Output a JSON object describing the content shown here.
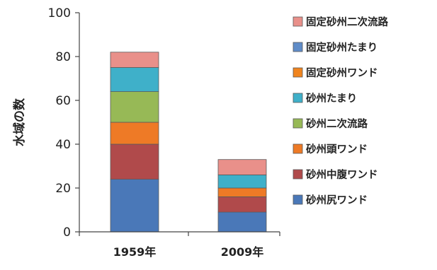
{
  "chart_data": {
    "type": "bar",
    "stacked": true,
    "categories": [
      "1959年",
      "2009年"
    ],
    "ylabel": "水域の数",
    "xlabel": "",
    "ylim": [
      0,
      100
    ],
    "yticks": [
      0,
      20,
      40,
      60,
      80,
      100
    ],
    "grid": false,
    "legend_position": "right",
    "series": [
      {
        "name": "砂州尻ワンド",
        "color": "#4a78b8",
        "values": [
          24,
          9
        ]
      },
      {
        "name": "砂州中腹ワンド",
        "color": "#b04a4b",
        "values": [
          16,
          7
        ]
      },
      {
        "name": "砂州頭ワンド",
        "color": "#ee7a26",
        "values": [
          10,
          4
        ]
      },
      {
        "name": "砂州二次流路",
        "color": "#97b956",
        "values": [
          14,
          0
        ]
      },
      {
        "name": "砂州たまり",
        "color": "#3fb0c9",
        "values": [
          11,
          6
        ]
      },
      {
        "name": "固定砂州ワンド",
        "color": "#f0841e",
        "values": [
          0,
          0
        ]
      },
      {
        "name": "固定砂州たまり",
        "color": "#5f8cc8",
        "values": [
          0,
          0
        ]
      },
      {
        "name": "固定砂州二次流路",
        "color": "#e9908a",
        "values": [
          7,
          7
        ]
      }
    ]
  }
}
